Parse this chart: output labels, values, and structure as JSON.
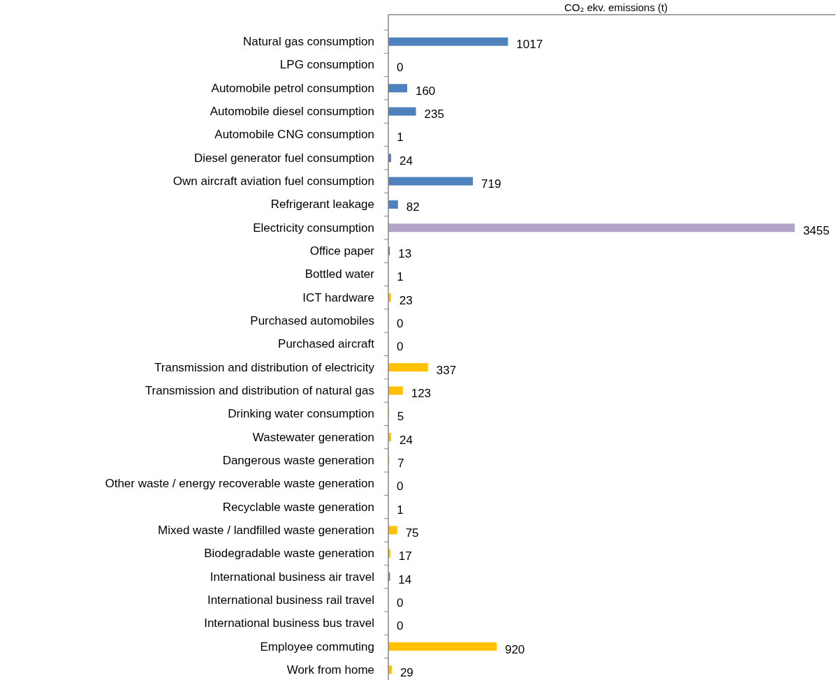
{
  "chart_data": {
    "type": "bar",
    "orientation": "horizontal",
    "xlabel": "CO₂ ekv. emissions (t)",
    "categories": [
      "Natural gas consumption",
      "LPG consumption",
      "Automobile petrol consumption",
      "Automobile diesel consumption",
      "Automobile CNG consumption",
      "Diesel generator fuel consumption",
      "Own aircraft aviation fuel consumption",
      "Refrigerant leakage",
      "Electricity consumption",
      "Office paper",
      "Bottled water",
      "ICT hardware",
      "Purchased automobiles",
      "Purchased aircraft",
      "Transmission and distribution of electricity",
      "Transmission and distribution of natural gas",
      "Drinking water consumption",
      "Wastewater generation",
      "Dangerous waste generation",
      "Other waste / energy recoverable waste generation",
      "Recyclable waste generation",
      "Mixed waste / landfilled waste generation",
      "Biodegradable waste generation",
      "International business air travel",
      "International business rail travel",
      "International business bus travel",
      "Employee commuting",
      "Work from home"
    ],
    "values": [
      1017,
      0,
      160,
      235,
      1,
      24,
      719,
      82,
      3455,
      13,
      1,
      23,
      0,
      0,
      337,
      123,
      5,
      24,
      7,
      0,
      1,
      75,
      17,
      14,
      0,
      0,
      920,
      29
    ],
    "colors": [
      "#4f81bd",
      "#4f81bd",
      "#4f81bd",
      "#4f81bd",
      "#4f81bd",
      "#4f81bd",
      "#4f81bd",
      "#4f81bd",
      "#b3a2c7",
      "#4f81bd",
      "#ffc000",
      "#ffc000",
      "#ffc000",
      "#ffc000",
      "#ffc000",
      "#ffc000",
      "#ffc000",
      "#ffc000",
      "#ffc000",
      "#ffc000",
      "#ffc000",
      "#ffc000",
      "#ffc000",
      "#4f81bd",
      "#4f81bd",
      "#4f81bd",
      "#ffc000",
      "#ffc000"
    ],
    "xlim": [
      0,
      3800
    ],
    "tick_labels": "y",
    "data_labels": true
  }
}
